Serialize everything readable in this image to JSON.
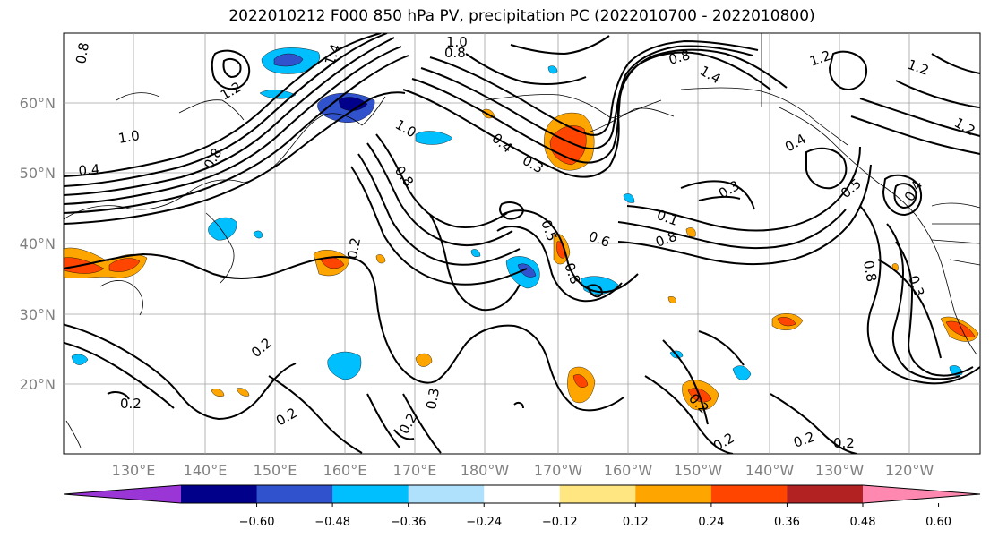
{
  "title": "2022010212 F000 850 hPa PV, precipitation PC (2022010700 - 2022010800)",
  "map": {
    "lat_labels": [
      "60°N",
      "50°N",
      "40°N",
      "30°N",
      "20°N"
    ],
    "lon_labels": [
      "130°E",
      "140°E",
      "150°E",
      "160°E",
      "170°E",
      "180°W",
      "170°W",
      "160°W",
      "150°W",
      "140°W",
      "130°W",
      "120°W"
    ],
    "contour_labels": [
      "0.8",
      "1.0",
      "0.8",
      "1.4",
      "1.2",
      "1.0",
      "0.4",
      "0.8",
      "1.0",
      "0.4",
      "0.8",
      "0.3",
      "0.2",
      "0.5",
      "0.6",
      "0.8",
      "0.2",
      "0.2",
      "0.2",
      "0.2",
      "0.3",
      "0.2",
      "0.2",
      "0.2",
      "1.2",
      "0.8",
      "1.4",
      "1.2",
      "0.4",
      "0.5",
      "0.3",
      "0.8",
      "0.8",
      "1.2",
      "0.3",
      "0.4",
      "0.1",
      "0.2"
    ]
  },
  "colorbar": {
    "colors": [
      "#9a35d6",
      "#00008b",
      "#3052cc",
      "#00bfff",
      "#afe1fd",
      "#ffffff",
      "#ffe680",
      "#ffa500",
      "#ff4500",
      "#b22222",
      "#ff88b0"
    ],
    "tick_labels": [
      "−0.60",
      "−0.48",
      "−0.36",
      "−0.24",
      "−0.12",
      "0.12",
      "0.24",
      "0.36",
      "0.48",
      "0.60"
    ]
  }
}
